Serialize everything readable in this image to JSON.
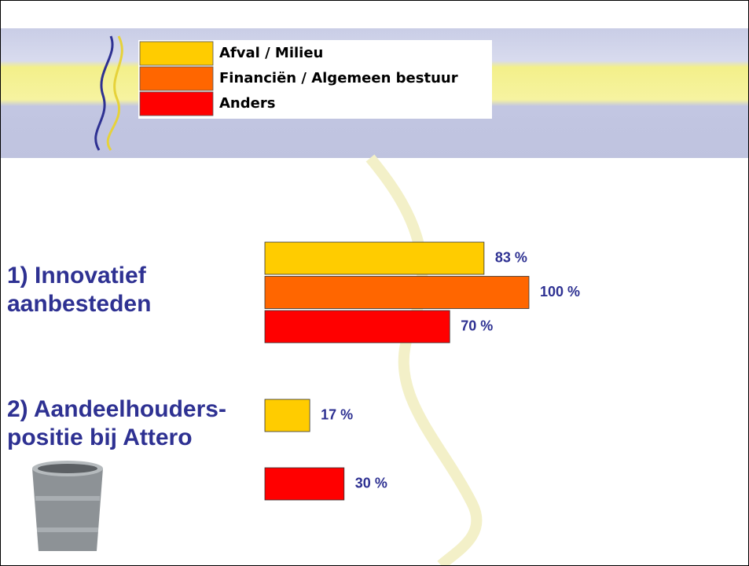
{
  "chart_data": {
    "type": "bar",
    "orientation": "horizontal",
    "categories": [
      "1) Innovatief aanbesteden",
      "2) Aandeelhouders-positie bij Attero"
    ],
    "series": [
      {
        "name": "Afval / Milieu",
        "color": "#ffcc00",
        "values": [
          83,
          17
        ],
        "value_labels": [
          "83 %",
          "17 %"
        ]
      },
      {
        "name": "Financiën / Algemeen bestuur",
        "color": "#ff6600",
        "values": [
          100,
          null
        ],
        "value_labels": [
          "100 %",
          null
        ]
      },
      {
        "name": "Anders",
        "color": "#ff0000",
        "values": [
          70,
          30
        ],
        "value_labels": [
          "70 %",
          "30 %"
        ]
      }
    ],
    "xlim": [
      0,
      100
    ],
    "legend": "top"
  }
}
